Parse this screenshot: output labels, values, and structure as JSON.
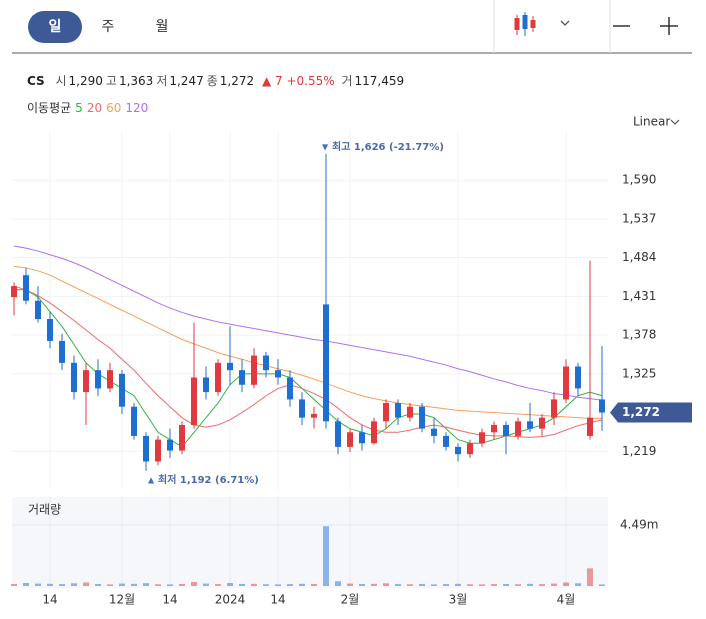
{
  "tabs": [
    "일",
    "주",
    "월"
  ],
  "scale_mode": "Linear",
  "summary": {
    "symbol": "CS",
    "fields": [
      {
        "label": "시",
        "value": "1,290"
      },
      {
        "label": "고",
        "value": "1,363"
      },
      {
        "label": "저",
        "value": "1,247"
      },
      {
        "label": "종",
        "value": "1,272"
      }
    ],
    "change": "7",
    "change_percent": "+0.55%",
    "volume": {
      "label": "거",
      "value": "117,459"
    }
  },
  "chart_data": {
    "type": "candlestick",
    "ma_title": "이동평균",
    "categories": [
      null,
      null,
      null,
      "14",
      null,
      null,
      null,
      null,
      null,
      "12월",
      null,
      null,
      null,
      "14",
      null,
      null,
      null,
      null,
      "2024",
      null,
      null,
      null,
      "14",
      null,
      null,
      null,
      null,
      null,
      "2월",
      null,
      null,
      null,
      null,
      null,
      null,
      null,
      null,
      "3월",
      null,
      null,
      null,
      null,
      null,
      null,
      null,
      null,
      "4월",
      null,
      null,
      null
    ],
    "open": [
      1430,
      1460,
      1425,
      1400,
      1370,
      1340,
      1300,
      1330,
      1305,
      1325,
      1280,
      1240,
      1205,
      1235,
      1220,
      1255,
      1320,
      1300,
      1340,
      1330,
      1310,
      1350,
      1330,
      1320,
      1290,
      1265,
      1420,
      1260,
      1225,
      1245,
      1230,
      1260,
      1285,
      1265,
      1280,
      1250,
      1240,
      1225,
      1215,
      1230,
      1245,
      1255,
      1240,
      1260,
      1250,
      1265,
      1290,
      1335,
      1240,
      1290
    ],
    "high": [
      1450,
      1470,
      1445,
      1410,
      1380,
      1350,
      1340,
      1345,
      1340,
      1330,
      1285,
      1245,
      1240,
      1250,
      1260,
      1395,
      1335,
      1345,
      1390,
      1345,
      1360,
      1355,
      1345,
      1330,
      1300,
      1280,
      1626,
      1265,
      1250,
      1255,
      1265,
      1290,
      1290,
      1285,
      1285,
      1265,
      1245,
      1230,
      1235,
      1250,
      1260,
      1260,
      1265,
      1285,
      1270,
      1300,
      1345,
      1340,
      1480,
      1363
    ],
    "low": [
      1405,
      1420,
      1395,
      1360,
      1330,
      1290,
      1255,
      1295,
      1300,
      1270,
      1235,
      1192,
      1200,
      1210,
      1215,
      1250,
      1290,
      1295,
      1310,
      1300,
      1305,
      1320,
      1310,
      1280,
      1255,
      1250,
      1250,
      1215,
      1218,
      1220,
      1228,
      1250,
      1255,
      1260,
      1245,
      1230,
      1220,
      1205,
      1210,
      1225,
      1235,
      1215,
      1235,
      1245,
      1240,
      1255,
      1285,
      1295,
      1235,
      1247
    ],
    "close": [
      1445,
      1425,
      1400,
      1370,
      1340,
      1300,
      1330,
      1305,
      1330,
      1280,
      1240,
      1205,
      1235,
      1220,
      1255,
      1320,
      1300,
      1340,
      1330,
      1310,
      1350,
      1330,
      1320,
      1290,
      1265,
      1270,
      1260,
      1225,
      1245,
      1230,
      1260,
      1285,
      1265,
      1280,
      1250,
      1240,
      1225,
      1215,
      1230,
      1245,
      1255,
      1240,
      1260,
      1250,
      1265,
      1290,
      1335,
      1305,
      1265,
      1272
    ],
    "up_color": "#e0393e",
    "down_color": "#1f6fd0",
    "series": [
      {
        "name": "5",
        "color": "#2fb344",
        "values": [
          1440,
          1440,
          1430,
          1410,
          1390,
          1365,
          1340,
          1325,
          1315,
          1305,
          1295,
          1270,
          1245,
          1235,
          1225,
          1245,
          1265,
          1285,
          1310,
          1325,
          1325,
          1325,
          1325,
          1320,
          1305,
          1290,
          1275,
          1260,
          1250,
          1245,
          1240,
          1250,
          1265,
          1270,
          1270,
          1265,
          1250,
          1235,
          1230,
          1230,
          1235,
          1240,
          1245,
          1250,
          1255,
          1265,
          1280,
          1295,
          1300,
          1295
        ]
      },
      {
        "name": "20",
        "color": "#f06a6a",
        "values": [
          1445,
          1440,
          1432,
          1422,
          1410,
          1398,
          1385,
          1372,
          1360,
          1345,
          1330,
          1312,
          1295,
          1280,
          1265,
          1255,
          1252,
          1255,
          1262,
          1272,
          1283,
          1295,
          1305,
          1310,
          1305,
          1298,
          1290,
          1278,
          1265,
          1255,
          1248,
          1245,
          1245,
          1248,
          1252,
          1255,
          1252,
          1248,
          1244,
          1241,
          1240,
          1240,
          1239,
          1238,
          1239,
          1242,
          1248,
          1254,
          1258,
          1262
        ]
      },
      {
        "name": "60",
        "color": "#f5a05a",
        "values": [
          1472,
          1470,
          1466,
          1460,
          1452,
          1444,
          1436,
          1428,
          1420,
          1412,
          1404,
          1396,
          1388,
          1380,
          1372,
          1366,
          1360,
          1354,
          1349,
          1345,
          1340,
          1336,
          1332,
          1328,
          1323,
          1318,
          1312,
          1306,
          1300,
          1295,
          1291,
          1288,
          1285,
          1283,
          1281,
          1279,
          1277,
          1275,
          1274,
          1273,
          1272,
          1271,
          1270,
          1269,
          1268,
          1267,
          1266,
          1265,
          1264,
          1264
        ]
      },
      {
        "name": "120",
        "color": "#b070f0",
        "values": [
          1500,
          1497,
          1493,
          1488,
          1483,
          1477,
          1470,
          1462,
          1454,
          1446,
          1438,
          1430,
          1422,
          1415,
          1409,
          1404,
          1400,
          1396,
          1393,
          1390,
          1387,
          1384,
          1381,
          1378,
          1375,
          1372,
          1370,
          1367,
          1364,
          1361,
          1358,
          1355,
          1352,
          1349,
          1345,
          1341,
          1337,
          1332,
          1328,
          1323,
          1318,
          1314,
          1309,
          1305,
          1302,
          1298,
          1296,
          1293,
          1291,
          1289
        ]
      }
    ],
    "ylim": [
      1166,
      1645
    ],
    "yticks": [
      {
        "value": 1219,
        "label": "1,219"
      },
      {
        "value": 1325,
        "label": "1,325"
      },
      {
        "value": 1378,
        "label": "1,378"
      },
      {
        "value": 1431,
        "label": "1,431"
      },
      {
        "value": 1484,
        "label": "1,484"
      },
      {
        "value": 1537,
        "label": "1,537"
      },
      {
        "value": 1590,
        "label": "1,590"
      }
    ],
    "grid": true,
    "last_price": {
      "value": 1272,
      "label": "1,272"
    },
    "annotations": {
      "high": "최고 1,626 (-21.77%)",
      "low": "최저 1,192 (6.71%)"
    },
    "volume": {
      "title": "거래량",
      "values": [
        150000,
        220000,
        180000,
        160000,
        140000,
        200000,
        260000,
        150000,
        120000,
        180000,
        160000,
        210000,
        130000,
        120000,
        150000,
        300000,
        180000,
        140000,
        220000,
        150000,
        160000,
        130000,
        120000,
        140000,
        160000,
        150000,
        4400000,
        350000,
        180000,
        150000,
        160000,
        200000,
        140000,
        130000,
        150000,
        120000,
        140000,
        160000,
        130000,
        120000,
        140000,
        150000,
        130000,
        160000,
        140000,
        180000,
        260000,
        200000,
        1300000,
        117459
      ],
      "ylim": [
        0,
        6330000
      ],
      "yticks": [
        {
          "value": 4490000,
          "label": "4.49m"
        }
      ]
    }
  }
}
